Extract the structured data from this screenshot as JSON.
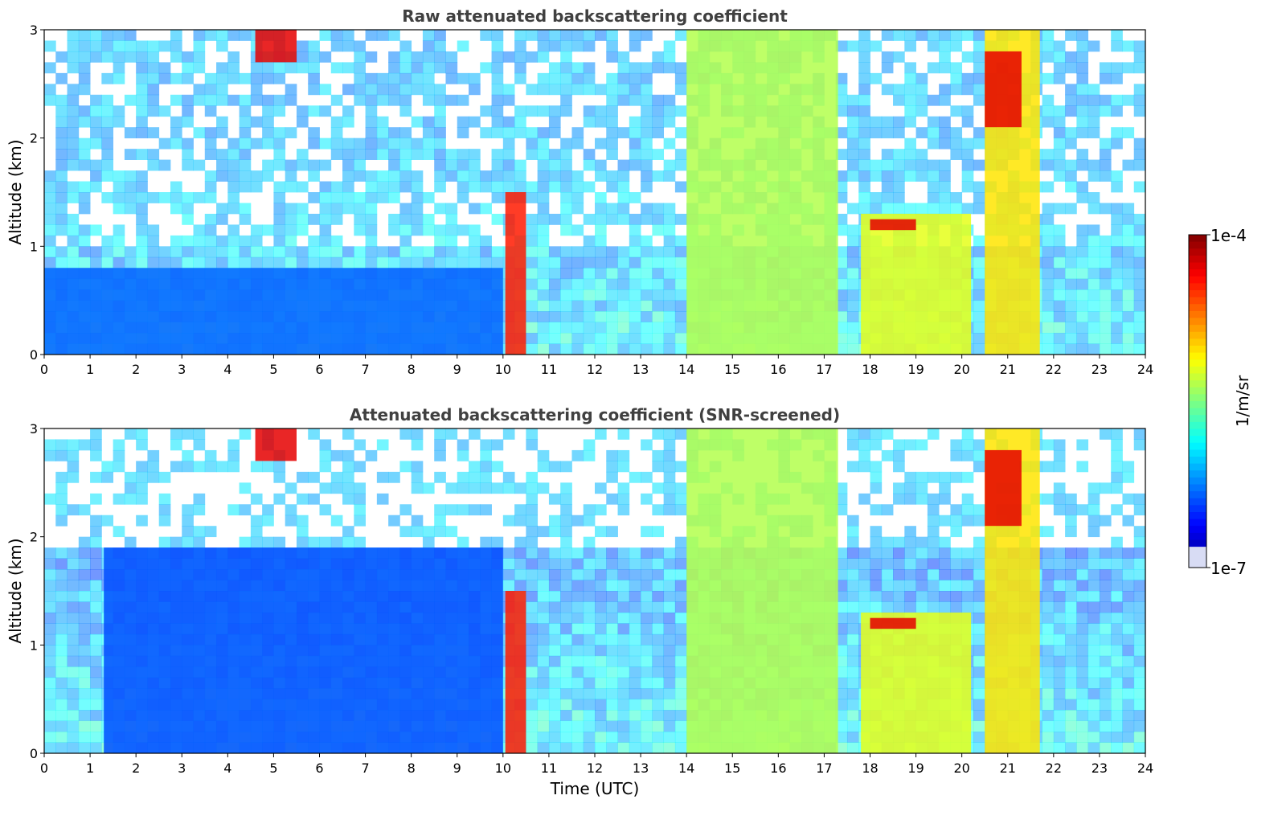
{
  "chart_data": [
    {
      "type": "heatmap",
      "title": "Raw attenuated backscattering coefficient",
      "xlabel": "",
      "ylabel": "Altitude (km)",
      "xlim": [
        0,
        24
      ],
      "ylim": [
        0,
        3
      ],
      "x_ticks": [
        "0",
        "1",
        "2",
        "3",
        "4",
        "5",
        "6",
        "7",
        "8",
        "9",
        "10",
        "11",
        "12",
        "13",
        "14",
        "15",
        "16",
        "17",
        "18",
        "19",
        "20",
        "21",
        "22",
        "23",
        "24"
      ],
      "y_ticks": [
        "0",
        "1",
        "2",
        "3"
      ],
      "colormap": "jet",
      "color_scale": "log",
      "color_range": [
        "1e-7",
        "1e-4"
      ],
      "features": [
        {
          "name": "boundary-layer aerosol",
          "x": [
            0,
            10
          ],
          "y": [
            0,
            0.8
          ],
          "level": 0.22
        },
        {
          "name": "thick cloud",
          "x": [
            10.05,
            10.5
          ],
          "y": [
            0,
            1.5
          ],
          "level": 0.85
        },
        {
          "name": "cloud layer",
          "x": [
            14,
            17.3
          ],
          "y": [
            0,
            3
          ],
          "level": 0.55
        },
        {
          "name": "cloud layer",
          "x": [
            17.8,
            20.2
          ],
          "y": [
            0,
            1.3
          ],
          "level": 0.6
        },
        {
          "name": "cloud layer",
          "x": [
            20.5,
            21.7
          ],
          "y": [
            0,
            3
          ],
          "level": 0.65
        },
        {
          "name": "elevated layer",
          "x": [
            18,
            19
          ],
          "y": [
            1.15,
            1.25
          ],
          "level": 0.9
        },
        {
          "name": "rising layer",
          "x": [
            20.5,
            21.3
          ],
          "y": [
            2.1,
            2.8
          ],
          "level": 0.9
        },
        {
          "name": "high clouds",
          "x": [
            4.6,
            5.5
          ],
          "y": [
            2.7,
            3.0
          ],
          "level": 0.9
        }
      ]
    },
    {
      "type": "heatmap",
      "title": "Attenuated backscattering coefficient (SNR-screened)",
      "xlabel": "Time (UTC)",
      "ylabel": "Altitude (km)",
      "xlim": [
        0,
        24
      ],
      "ylim": [
        0,
        3
      ],
      "x_ticks": [
        "0",
        "1",
        "2",
        "3",
        "4",
        "5",
        "6",
        "7",
        "8",
        "9",
        "10",
        "11",
        "12",
        "13",
        "14",
        "15",
        "16",
        "17",
        "18",
        "19",
        "20",
        "21",
        "22",
        "23",
        "24"
      ],
      "y_ticks": [
        "0",
        "1",
        "2",
        "3"
      ],
      "colormap": "jet",
      "color_scale": "log",
      "color_range": [
        "1e-7",
        "1e-4"
      ],
      "features": [
        {
          "name": "boundary-layer aerosol",
          "x": [
            1.3,
            10
          ],
          "y": [
            0,
            1.9
          ],
          "level": 0.2
        },
        {
          "name": "thick cloud",
          "x": [
            10.05,
            10.5
          ],
          "y": [
            0,
            1.5
          ],
          "level": 0.85
        },
        {
          "name": "cloud layer",
          "x": [
            14,
            17.3
          ],
          "y": [
            0,
            3
          ],
          "level": 0.55
        },
        {
          "name": "cloud layer",
          "x": [
            17.8,
            20.2
          ],
          "y": [
            0,
            1.3
          ],
          "level": 0.6
        },
        {
          "name": "cloud layer",
          "x": [
            20.5,
            21.7
          ],
          "y": [
            0,
            3
          ],
          "level": 0.65
        },
        {
          "name": "elevated layer",
          "x": [
            18,
            19
          ],
          "y": [
            1.15,
            1.25
          ],
          "level": 0.9
        },
        {
          "name": "rising layer",
          "x": [
            20.5,
            21.3
          ],
          "y": [
            2.1,
            2.8
          ],
          "level": 0.9
        },
        {
          "name": "high clouds",
          "x": [
            4.6,
            5.5
          ],
          "y": [
            2.7,
            3.0
          ],
          "level": 0.9
        }
      ]
    }
  ],
  "colorbar": {
    "max_label": "1e-4",
    "min_label": "1e-7",
    "unit_label": "1/m/sr"
  }
}
